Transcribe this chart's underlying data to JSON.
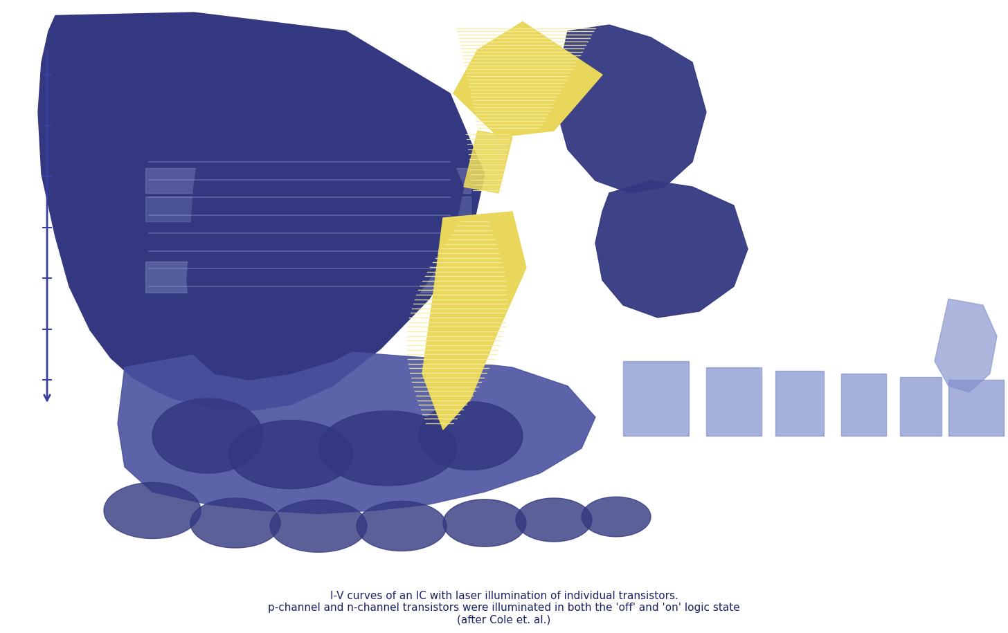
{
  "background_color": "#ffffff",
  "fig_width": 14.56,
  "fig_height": 9.15,
  "dpi": 100,
  "dark_blue": "#333880",
  "mid_blue": "#4a52a0",
  "light_blue": "#6b7bbf",
  "pale_blue": "#8090cc",
  "very_pale_blue": "#9aa5d5",
  "axis_blue": "#3a40a0",
  "yellow": "#e8d75a",
  "yellow_light": "#f5eda0",
  "title": "I-V curves of an IC with laser illumination of individual transistors.\np-channel and n-channel transistors were illuminated in both the 'off' and 'on' logic state\n(after Cole et. al.)"
}
